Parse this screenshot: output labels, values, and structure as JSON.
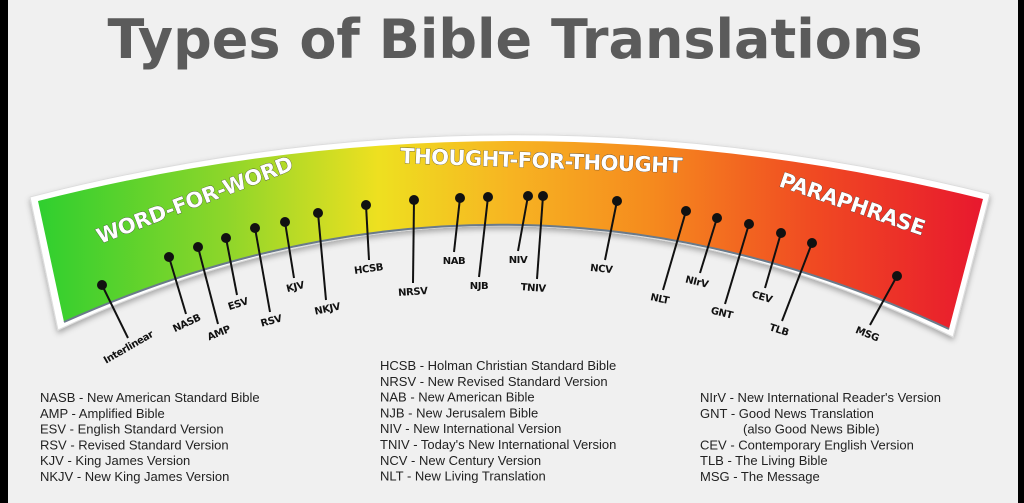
{
  "title": "Types of Bible Translations",
  "colors": {
    "green": "#2fcf2f",
    "yellow": "#eee020",
    "orange": "#f58a1e",
    "red": "#e8182e",
    "title": "#5b5b5b",
    "background": "#f0f0f0"
  },
  "regions": [
    {
      "label": "WORD-FOR-WORD"
    },
    {
      "label": "THOUGHT-FOR-THOUGHT"
    },
    {
      "label": "PARAPHRASE"
    }
  ],
  "markers": [
    "Interlinear",
    "NASB",
    "AMP",
    "ESV",
    "RSV",
    "KJV",
    "NKJV",
    "HCSB",
    "NRSV",
    "NAB",
    "NJB",
    "NIV",
    "TNIV",
    "NCV",
    "NLT",
    "NIrV",
    "GNT",
    "CEV",
    "TLB",
    "MSG"
  ],
  "legend": {
    "col1": [
      "NASB - New American Standard Bible",
      "AMP - Amplified Bible",
      "ESV - English Standard Version",
      "RSV - Revised Standard Version",
      "KJV - King James Version",
      "NKJV - New King James Version"
    ],
    "col2": [
      "HCSB - Holman Christian Standard Bible",
      "NRSV - New Revised Standard Version",
      "NAB - New American Bible",
      "NJB - New Jerusalem Bible",
      "NIV - New International Version",
      "TNIV - Today's New International Version",
      "NCV - New Century Version",
      "NLT - New Living Translation"
    ],
    "col3": [
      "NIrV - New International Reader's Version",
      "GNT - Good News Translation",
      "(also Good News Bible)",
      "CEV - Contemporary English Version",
      "TLB - The Living Bible",
      "MSG - The Message"
    ]
  }
}
